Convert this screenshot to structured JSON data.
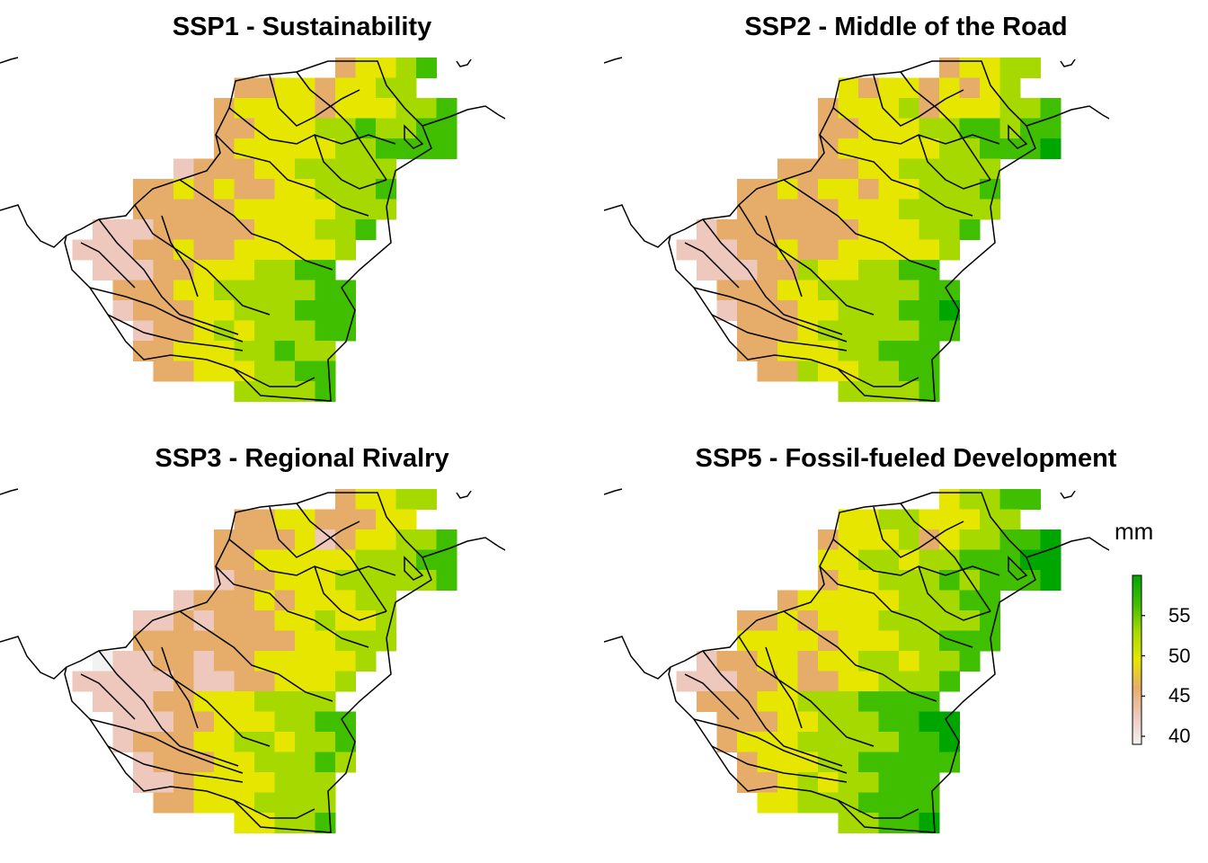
{
  "panels": [
    {
      "title": "SSP1 - Sustainability",
      "scenario": "SSP1"
    },
    {
      "title": "SSP2 - Middle of the Road",
      "scenario": "SSP2"
    },
    {
      "title": "SSP3 - Regional Rivalry",
      "scenario": "SSP3"
    },
    {
      "title": "SSP5 - Fossil-fueled Development",
      "scenario": "SSP5"
    }
  ],
  "legend": {
    "unit": "mm",
    "min": 39,
    "max": 60,
    "ticks": [
      "40",
      "45",
      "50",
      "55"
    ],
    "tick_values": [
      40,
      45,
      50,
      55
    ]
  },
  "colors": {
    "low": "#f2f2f2",
    "pink": "#efc8bd",
    "tan": "#e6ad6a",
    "yellow": "#e6e600",
    "lime": "#a6d900",
    "green": "#3fbf00",
    "dark_green": "#00a600",
    "boundary": "#000000"
  }
}
